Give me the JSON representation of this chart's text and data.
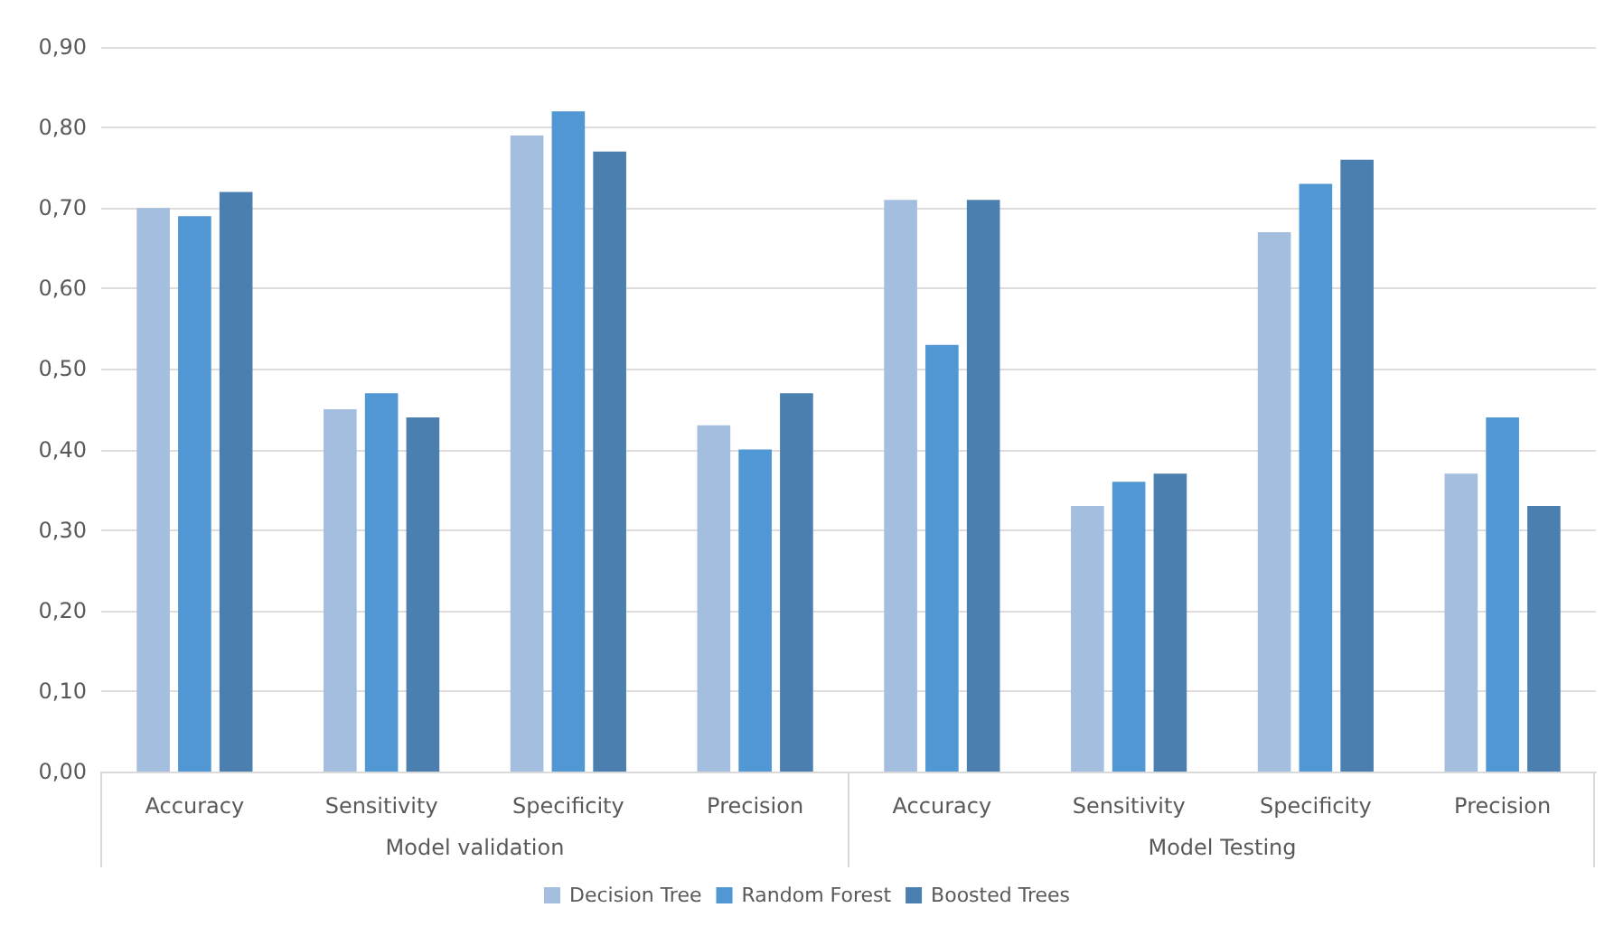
{
  "chart_data": {
    "type": "bar",
    "categories": [
      "Accuracy",
      "Sensitivity",
      "Specificity",
      "Precision",
      "Accuracy",
      "Sensitivity",
      "Specificity",
      "Precision"
    ],
    "series": [
      {
        "name": "Decision Tree",
        "color": "#a3bedf",
        "values": [
          0.7,
          0.45,
          0.79,
          0.43,
          0.71,
          0.33,
          0.67,
          0.37
        ]
      },
      {
        "name": "Random Forest",
        "color": "#5197d3",
        "values": [
          0.69,
          0.47,
          0.82,
          0.4,
          0.53,
          0.36,
          0.73,
          0.44
        ]
      },
      {
        "name": "Boosted Trees",
        "color": "#4a7fb0",
        "values": [
          0.72,
          0.44,
          0.77,
          0.47,
          0.71,
          0.37,
          0.76,
          0.33
        ]
      }
    ],
    "annotations": [
      "Model validation",
      "Model Testing"
    ],
    "ylim": [
      0,
      0.9
    ],
    "yticks": [
      {
        "value": 0,
        "label": "0,00"
      },
      {
        "value": 0.1,
        "label": "0,10"
      },
      {
        "value": 0.2,
        "label": "0,20"
      },
      {
        "value": 0.3,
        "label": "0,30"
      },
      {
        "value": 0.4,
        "label": "0,40"
      },
      {
        "value": 0.5,
        "label": "0,50"
      },
      {
        "value": 0.6,
        "label": "0,60"
      },
      {
        "value": 0.7,
        "label": "0,70"
      },
      {
        "value": 0.8,
        "label": "0,80"
      },
      {
        "value": 0.9,
        "label": "0,90"
      }
    ],
    "grid": "y",
    "legend": "bottom"
  }
}
